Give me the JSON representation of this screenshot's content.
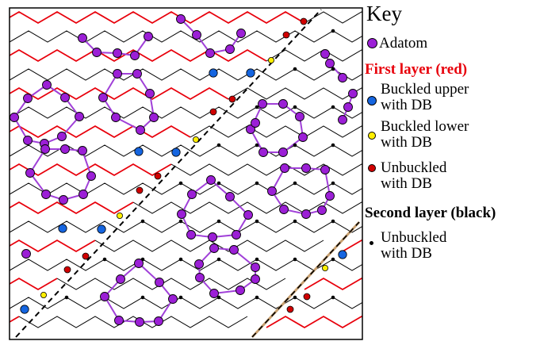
{
  "key": {
    "title": "Key",
    "adatom_label": "Adatom",
    "first_layer_heading": "First layer (red)",
    "buckled_upper_label_line1": "Buckled upper",
    "buckled_upper_label_line2": "with DB",
    "buckled_lower_label_line1": "Buckled lower",
    "buckled_lower_label_line2": "with DB",
    "unbuckled_first_label_line1": "Unbuckled",
    "unbuckled_first_label_line2": "with DB",
    "second_layer_heading": "Second layer (black)",
    "unbuckled_second_label_line1": "Unbuckled",
    "unbuckled_second_label_line2": "with DB"
  },
  "colors": {
    "first_layer": "#e8000b",
    "second_layer": "#000000",
    "adatom_fill": "#9b1fd6",
    "adatom_bond": "#a040d8",
    "buckled_upper": "#1565e0",
    "buckled_lower": "#ffef00",
    "unbuckled_db": "#d00000",
    "boundary": "#000000"
  }
}
